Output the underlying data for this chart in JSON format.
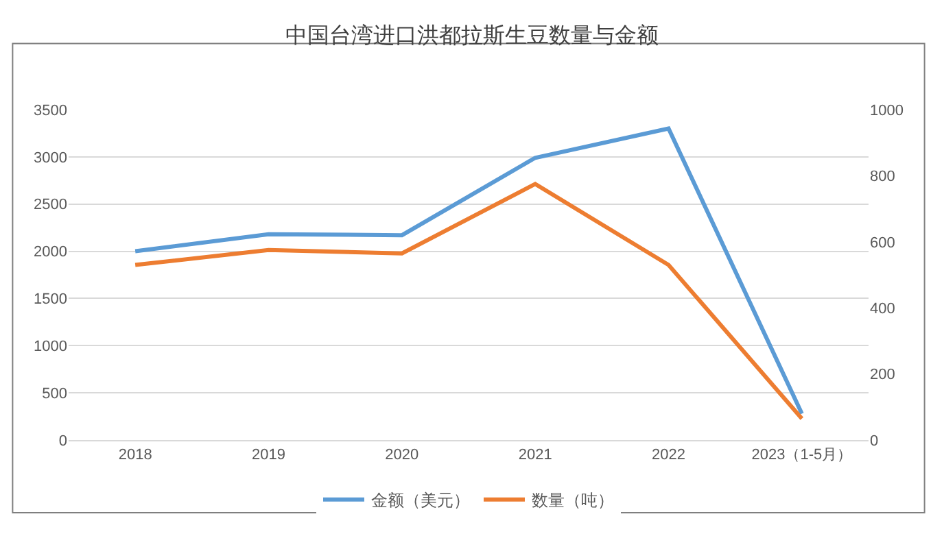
{
  "chart_data": {
    "type": "line",
    "title": "中国台湾进口洪都拉斯生豆数量与金额",
    "categories": [
      "2018",
      "2019",
      "2020",
      "2021",
      "2022",
      "2023（1-5月）"
    ],
    "series": [
      {
        "name": "金额（美元）",
        "color": "#5b9bd5",
        "values": [
          2000,
          2180,
          2170,
          2990,
          3300,
          280
        ]
      },
      {
        "name": "数量（吨）",
        "color": "#ed7d31",
        "axis": "y2",
        "values": [
          530,
          575,
          565,
          775,
          530,
          65
        ]
      }
    ],
    "ylim": [
      0,
      3500
    ],
    "yticks": [
      0,
      500,
      1000,
      1500,
      2000,
      2500,
      3000,
      3500
    ],
    "y2lim": [
      0,
      1000
    ],
    "y2ticks": [
      0,
      200,
      400,
      600,
      800,
      1000
    ],
    "grid": "y",
    "legend": "bottom",
    "marker": "none",
    "line_style": "solid"
  }
}
